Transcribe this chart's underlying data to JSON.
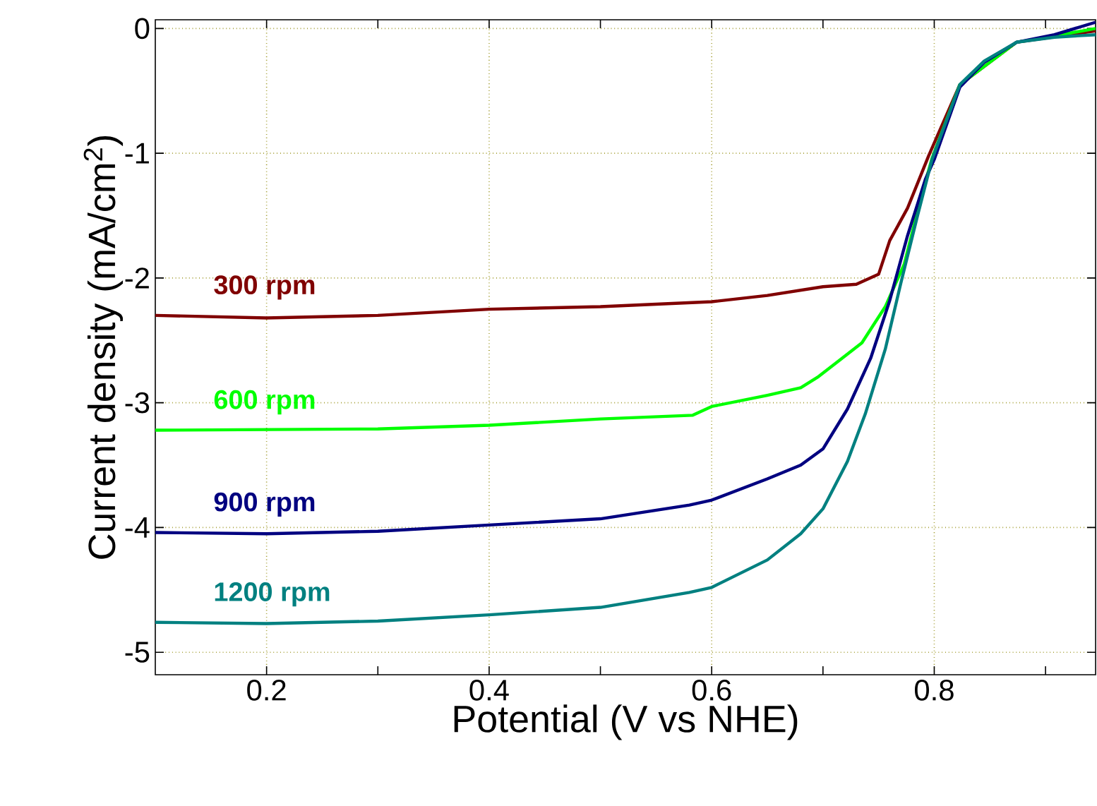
{
  "chart_data": {
    "type": "line",
    "xlabel": "Potential (V vs NHE)",
    "ylabel": "Current density (mA/cm$^{2}$)",
    "xlim": [
      0.1,
      0.945
    ],
    "ylim": [
      -5.18,
      0.07
    ],
    "xticks": [
      0.2,
      {
        "value": 0.3,
        "label": null
      },
      0.4,
      {
        "value": 0.5,
        "label": null
      },
      0.6,
      {
        "value": 0.7,
        "label": null
      },
      0.8,
      {
        "value": 0.9,
        "label": null
      }
    ],
    "yticks": [
      -5,
      -4,
      -3,
      -2,
      -1,
      0
    ],
    "grid": true,
    "legend": false,
    "marker": "none",
    "line_style": "solid",
    "series": [
      {
        "name": "300 rpm",
        "color": "#800000",
        "x": [
          0.1,
          0.2,
          0.3,
          0.4,
          0.5,
          0.6,
          0.65,
          0.7,
          0.73,
          0.75,
          0.76,
          0.776,
          0.795,
          0.823,
          0.845,
          0.874,
          0.908,
          0.945
        ],
        "values": [
          -2.3,
          -2.32,
          -2.3,
          -2.25,
          -2.23,
          -2.19,
          -2.14,
          -2.07,
          -2.05,
          -1.97,
          -1.7,
          -1.44,
          -1.02,
          -0.45,
          null,
          -0.11,
          null,
          -0.02
        ]
      },
      {
        "name": "600 rpm",
        "color": "#00ff00",
        "x": [
          0.1,
          0.3,
          0.4,
          0.5,
          0.583,
          0.6,
          0.65,
          0.68,
          0.696,
          0.735,
          0.756,
          0.773,
          0.788,
          0.798,
          0.823,
          0.845,
          0.874,
          0.908,
          0.945
        ],
        "values": [
          -3.22,
          -3.21,
          -3.18,
          -3.13,
          -3.1,
          -3.03,
          -2.94,
          -2.88,
          -2.79,
          -2.52,
          -2.23,
          -1.89,
          -1.36,
          -1.04,
          -0.45,
          null,
          -0.11,
          -0.06,
          0.0
        ]
      },
      {
        "name": "900 rpm",
        "color": "#000080",
        "x": [
          0.1,
          0.2,
          0.3,
          0.4,
          0.5,
          0.58,
          0.6,
          0.65,
          0.68,
          0.7,
          0.722,
          0.743,
          0.76,
          0.776,
          0.792,
          0.8,
          0.823,
          0.845,
          0.874,
          0.908,
          0.945
        ],
        "values": [
          -4.04,
          -4.05,
          -4.03,
          -3.98,
          -3.93,
          -3.82,
          -3.78,
          -3.61,
          -3.5,
          -3.37,
          -3.05,
          -2.64,
          -2.18,
          -1.66,
          -1.21,
          -1.05,
          -0.47,
          -0.27,
          -0.11,
          -0.05,
          0.05
        ]
      },
      {
        "name": "1200 rpm",
        "color": "#008080",
        "x": [
          0.1,
          0.2,
          0.3,
          0.4,
          0.5,
          0.58,
          0.6,
          0.65,
          0.68,
          0.7,
          0.722,
          0.738,
          0.756,
          0.77,
          0.785,
          0.798,
          0.823,
          0.845,
          0.874,
          0.908,
          0.945
        ],
        "values": [
          -4.76,
          -4.77,
          -4.75,
          -4.7,
          -4.64,
          -4.52,
          -4.48,
          -4.26,
          -4.05,
          -3.85,
          -3.47,
          -3.09,
          -2.57,
          -2.04,
          -1.5,
          -1.05,
          -0.45,
          -0.26,
          -0.11,
          -0.07,
          -0.05
        ]
      }
    ]
  }
}
